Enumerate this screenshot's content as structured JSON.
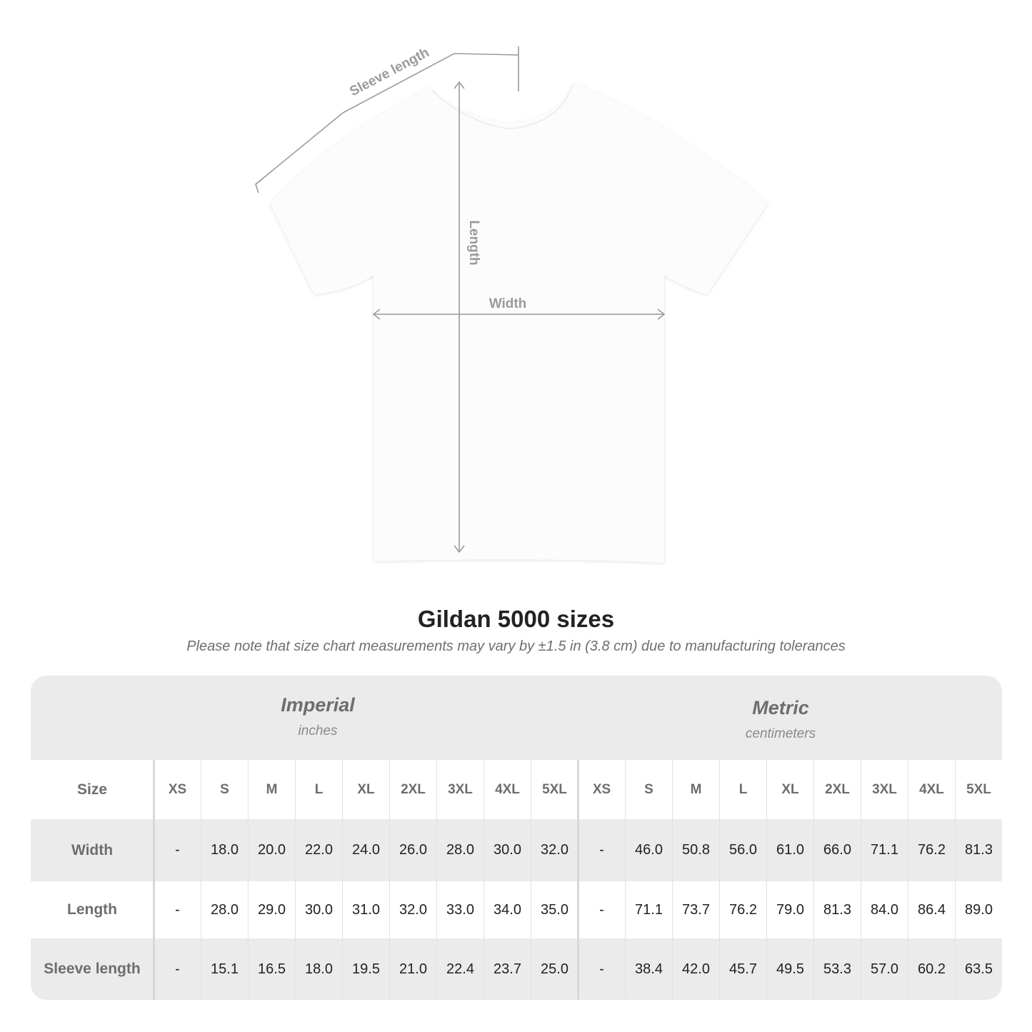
{
  "diagram": {
    "sleeve_label": "Sleeve length",
    "length_label": "Length",
    "width_label": "Width"
  },
  "title": "Gildan 5000 sizes",
  "note": "Please note that size chart measurements may vary by ±1.5 in (3.8 cm) due to manufacturing tolerances",
  "table": {
    "imperial": {
      "name": "Imperial",
      "unit": "inches"
    },
    "metric": {
      "name": "Metric",
      "unit": "centimeters"
    },
    "size_label": "Size",
    "sizes": [
      "XS",
      "S",
      "M",
      "L",
      "XL",
      "2XL",
      "3XL",
      "4XL",
      "5XL"
    ],
    "rows": [
      {
        "label": "Width",
        "imperial": [
          "-",
          "18.0",
          "20.0",
          "22.0",
          "24.0",
          "26.0",
          "28.0",
          "30.0",
          "32.0"
        ],
        "metric": [
          "-",
          "46.0",
          "50.8",
          "56.0",
          "61.0",
          "66.0",
          "71.1",
          "76.2",
          "81.3"
        ]
      },
      {
        "label": "Length",
        "imperial": [
          "-",
          "28.0",
          "29.0",
          "30.0",
          "31.0",
          "32.0",
          "33.0",
          "34.0",
          "35.0"
        ],
        "metric": [
          "-",
          "71.1",
          "73.7",
          "76.2",
          "79.0",
          "81.3",
          "84.0",
          "86.4",
          "89.0"
        ]
      },
      {
        "label": "Sleeve length",
        "imperial": [
          "-",
          "15.1",
          "16.5",
          "18.0",
          "19.5",
          "21.0",
          "22.4",
          "23.7",
          "25.0"
        ],
        "metric": [
          "-",
          "38.4",
          "42.0",
          "45.7",
          "49.5",
          "53.3",
          "57.0",
          "60.2",
          "63.5"
        ]
      }
    ]
  },
  "colors": {
    "header_bg": "#ebebeb",
    "label_text": "#6b6e70",
    "measure_line": "#9a9a9a"
  }
}
